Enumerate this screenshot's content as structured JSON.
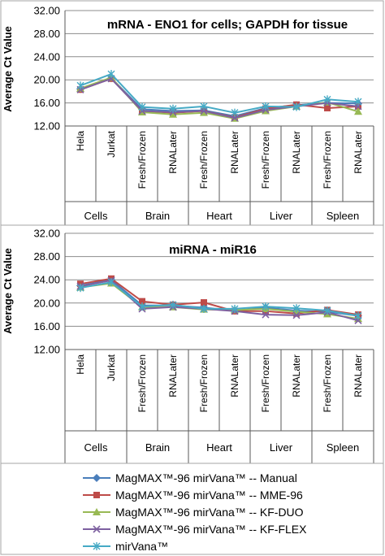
{
  "colors": {
    "manual": "#4a7ebb",
    "mme96": "#be4b48",
    "kfduo": "#98b954",
    "kfflex": "#7d60a0",
    "mirvana": "#46aac5",
    "grid": "#8c8c8c",
    "axis": "#595959",
    "frame": "#a6a6a6"
  },
  "legend": {
    "items": [
      {
        "label": "MagMAX™-96 mirVana™ -- Manual",
        "marker": "diamond",
        "color": "#4a7ebb"
      },
      {
        "label": "MagMAX™-96 mirVana™ -- MME-96",
        "marker": "square",
        "color": "#be4b48"
      },
      {
        "label": "MagMAX™-96 mirVana™ -- KF-DUO",
        "marker": "triangle",
        "color": "#98b954"
      },
      {
        "label": "MagMAX™-96 mirVana™ -- KF-FLEX",
        "marker": "x",
        "color": "#7d60a0"
      },
      {
        "label": "mirVana™",
        "marker": "star",
        "color": "#46aac5"
      }
    ]
  },
  "chart_data": [
    {
      "type": "line",
      "title": "mRNA - ENO1 for cells; GAPDH for tissue",
      "ylabel": "Average Ct Value",
      "ylim": [
        12,
        32
      ],
      "yticks": [
        "12.00",
        "16.00",
        "20.00",
        "24.00",
        "28.00",
        "32.00"
      ],
      "categories": [
        "Hela",
        "Jurkat",
        "Fresh/Frozen",
        "RNALater",
        "Fresh/Frozen",
        "RNALater",
        "Fresh/Frozen",
        "RNALater",
        "Fresh/Frozen",
        "RNALater"
      ],
      "groups": [
        "Cells",
        "Brain",
        "Heart",
        "Liver",
        "Spleen"
      ],
      "grid": true,
      "series": [
        {
          "name": "MagMAX™-96 mirVana™ -- Manual",
          "values": [
            18.4,
            20.3,
            14.9,
            14.6,
            14.7,
            13.7,
            15.1,
            15.6,
            16.0,
            15.9
          ]
        },
        {
          "name": "MagMAX™-96 mirVana™ -- MME-96",
          "values": [
            18.3,
            20.2,
            14.6,
            14.3,
            14.6,
            13.5,
            15.0,
            15.7,
            15.1,
            15.4
          ]
        },
        {
          "name": "MagMAX™-96 mirVana™ -- KF-DUO",
          "values": [
            18.5,
            20.4,
            14.4,
            14.0,
            14.3,
            13.3,
            14.6,
            15.4,
            16.1,
            14.5
          ]
        },
        {
          "name": "MagMAX™-96 mirVana™ -- KF-FLEX",
          "values": [
            18.3,
            20.2,
            14.6,
            14.4,
            14.6,
            13.4,
            14.8,
            15.4,
            16.0,
            15.4
          ]
        },
        {
          "name": "mirVana™",
          "values": [
            19.0,
            21.0,
            15.3,
            15.0,
            15.4,
            14.3,
            15.4,
            15.3,
            16.6,
            16.2
          ]
        }
      ]
    },
    {
      "type": "line",
      "title": "miRNA - miR16",
      "ylabel": "Average Ct Value",
      "ylim": [
        12,
        32
      ],
      "yticks": [
        "12.00",
        "16.00",
        "20.00",
        "24.00",
        "28.00",
        "32.00"
      ],
      "categories": [
        "Hela",
        "Jurkat",
        "Fresh/Frozen",
        "RNALater",
        "Fresh/Frozen",
        "RNALater",
        "Fresh/Frozen",
        "RNALater",
        "Fresh/Frozen",
        "RNALater"
      ],
      "groups": [
        "Cells",
        "Brain",
        "Heart",
        "Liver",
        "Spleen"
      ],
      "grid": true,
      "series": [
        {
          "name": "MagMAX™-96 mirVana™ -- Manual",
          "values": [
            23.0,
            24.0,
            19.6,
            19.6,
            19.2,
            18.7,
            19.2,
            18.7,
            18.5,
            17.8
          ]
        },
        {
          "name": "MagMAX™-96 mirVana™ -- MME-96",
          "values": [
            23.3,
            24.2,
            20.3,
            19.7,
            20.1,
            18.6,
            18.6,
            18.2,
            18.8,
            18.0
          ]
        },
        {
          "name": "MagMAX™-96 mirVana™ -- KF-DUO",
          "values": [
            22.7,
            23.4,
            19.3,
            19.3,
            18.9,
            18.8,
            19.0,
            18.5,
            18.1,
            17.3
          ]
        },
        {
          "name": "MagMAX™-96 mirVana™ -- KF-FLEX",
          "values": [
            22.9,
            23.9,
            19.0,
            19.3,
            19.0,
            18.6,
            18.0,
            17.9,
            18.4,
            17.0
          ]
        },
        {
          "name": "mirVana™",
          "values": [
            22.6,
            23.6,
            19.4,
            19.7,
            19.0,
            19.0,
            19.4,
            19.1,
            18.7,
            17.8
          ]
        }
      ]
    }
  ]
}
